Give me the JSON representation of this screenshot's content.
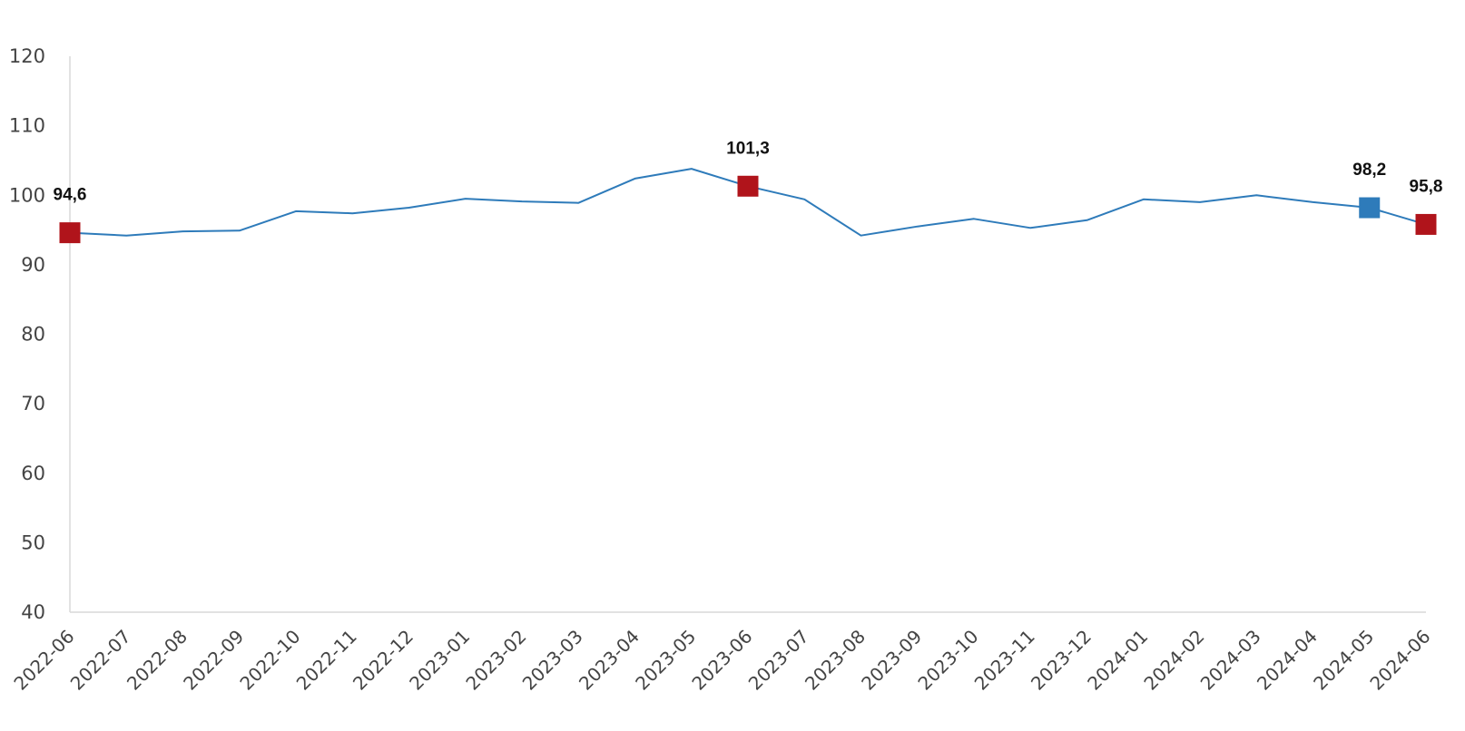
{
  "chart_data": {
    "type": "line",
    "title": "",
    "xlabel": "",
    "ylabel": "",
    "ylim": [
      40,
      120
    ],
    "yticks": [
      40,
      50,
      60,
      70,
      80,
      90,
      100,
      110,
      120
    ],
    "grid": false,
    "legend": "none",
    "x": [
      "2022-06",
      "2022-07",
      "2022-08",
      "2022-09",
      "2022-10",
      "2022-11",
      "2022-12",
      "2023-01",
      "2023-02",
      "2023-03",
      "2023-04",
      "2023-05",
      "2023-06",
      "2023-07",
      "2023-08",
      "2023-09",
      "2023-10",
      "2023-11",
      "2023-12",
      "2024-01",
      "2024-02",
      "2024-03",
      "2024-04",
      "2024-05",
      "2024-06"
    ],
    "series": [
      {
        "color": "#2e7bba",
        "values": [
          94.6,
          94.2,
          94.8,
          94.9,
          97.7,
          97.4,
          98.2,
          99.5,
          99.1,
          98.9,
          102.4,
          103.8,
          101.3,
          99.4,
          94.2,
          95.5,
          96.6,
          95.3,
          96.4,
          99.4,
          99.0,
          100.0,
          99.0,
          98.2,
          95.8
        ]
      }
    ],
    "markers": [
      {
        "x": "2022-06",
        "value": 94.6,
        "label": "94,6",
        "color": "#b0141b"
      },
      {
        "x": "2023-06",
        "value": 101.3,
        "label": "101,3",
        "color": "#b0141b"
      },
      {
        "x": "2024-05",
        "value": 98.2,
        "label": "98,2",
        "color": "#2e7bba"
      },
      {
        "x": "2024-06",
        "value": 95.8,
        "label": "95,8",
        "color": "#b0141b"
      }
    ],
    "axis_color": "#d9d9d9"
  }
}
